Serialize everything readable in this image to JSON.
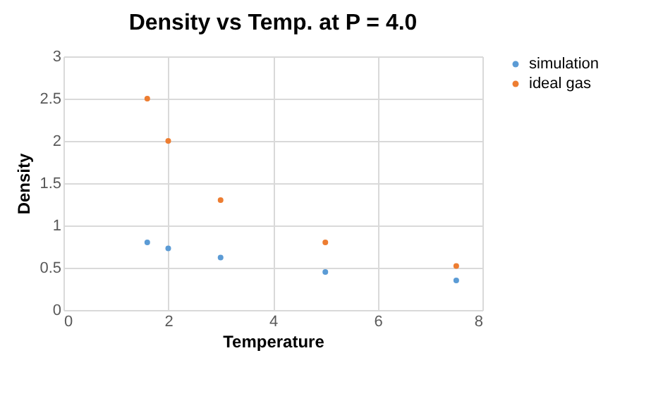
{
  "chart_data": {
    "type": "scatter",
    "title": "Density vs Temp. at P = 4.0",
    "xlabel": "Temperature",
    "ylabel": "Density",
    "xlim": [
      0,
      8
    ],
    "xticks": [
      0,
      2,
      4,
      6,
      8
    ],
    "ylim": [
      0,
      3
    ],
    "yticks": [
      0,
      0.5,
      1,
      1.5,
      2,
      2.5,
      3
    ],
    "grid": true,
    "legend": "right",
    "marker": "circle",
    "series": [
      {
        "name": "simulation",
        "color": "#5b9bd5",
        "x": [
          1.6,
          2,
          3,
          5,
          7.5
        ],
        "values": [
          0.8,
          0.73,
          0.62,
          0.45,
          0.35
        ]
      },
      {
        "name": "ideal gas",
        "color": "#ed7d31",
        "x": [
          1.6,
          2,
          3,
          5,
          7.5
        ],
        "values": [
          2.5,
          2.0,
          1.3,
          0.8,
          0.52
        ]
      }
    ]
  }
}
